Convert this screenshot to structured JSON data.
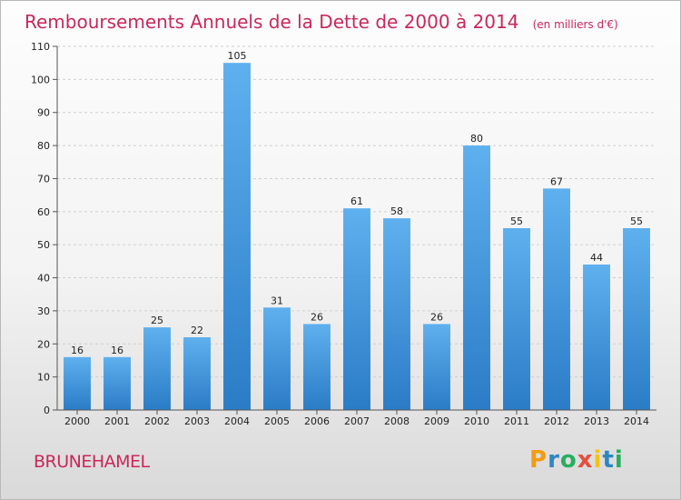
{
  "chart_data": {
    "type": "bar",
    "title": "Remboursements Annuels de la Dette de 2000 à 2014",
    "unit": "(en milliers d'€)",
    "categories": [
      "2000",
      "2001",
      "2002",
      "2003",
      "2004",
      "2005",
      "2006",
      "2007",
      "2008",
      "2009",
      "2010",
      "2011",
      "2012",
      "2013",
      "2014"
    ],
    "values": [
      16,
      16,
      25,
      22,
      105,
      31,
      26,
      61,
      58,
      26,
      80,
      55,
      67,
      44,
      55
    ],
    "ylim": [
      0,
      110
    ],
    "yticks": [
      0,
      10,
      20,
      30,
      40,
      50,
      60,
      70,
      80,
      90,
      100,
      110
    ],
    "grid": true,
    "bar_color": "#4a9fe0"
  },
  "place_name": "BRUNEHAMEL",
  "logo": {
    "letters": [
      "P",
      "r",
      "o",
      "x",
      "i",
      "t",
      "i"
    ],
    "colors": [
      "#f39c12",
      "#2e86c1",
      "#27ae60",
      "#e74c3c",
      "#f1c40f",
      "#2e86c1",
      "#27ae60"
    ]
  }
}
